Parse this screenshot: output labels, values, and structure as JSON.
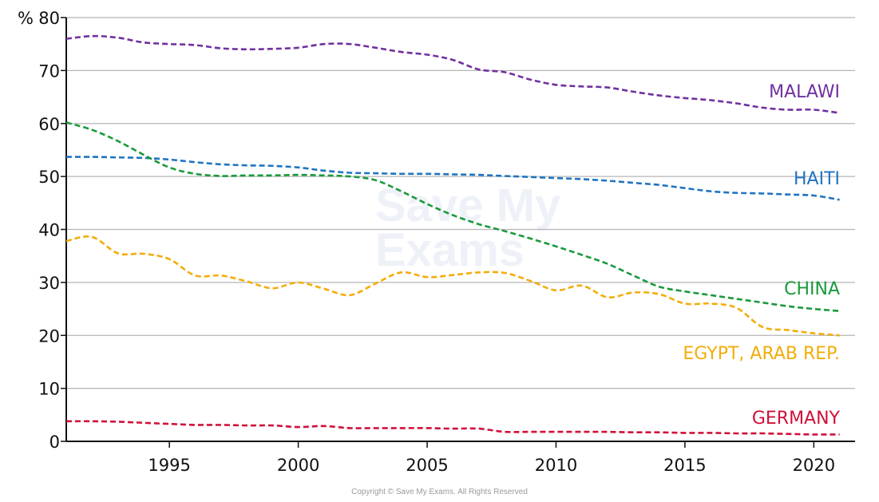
{
  "watermark": {
    "line1": "Save My",
    "line2": "Exams"
  },
  "copyright": "Copyright © Save My Exams. All Rights Reserved",
  "chart_data": {
    "type": "line",
    "title": "",
    "xlabel": "",
    "ylabel": "%",
    "xlim": [
      1991,
      2021.6
    ],
    "ylim": [
      0,
      80
    ],
    "xticks": [
      1995,
      2000,
      2005,
      2010,
      2015,
      2020
    ],
    "yticks": [
      0,
      10,
      20,
      30,
      40,
      50,
      60,
      70,
      80
    ],
    "grid": {
      "horizontal": true,
      "vertical": false
    },
    "line_style": "dashed",
    "legend": "labels at right end of lines",
    "series": [
      {
        "name": "MALAWI",
        "color": "#7030a0",
        "x": [
          1991,
          1992,
          1993,
          1994,
          1995,
          1996,
          1997,
          1998,
          1999,
          2000,
          2001,
          2002,
          2003,
          2004,
          2005,
          2006,
          2007,
          2008,
          2009,
          2010,
          2011,
          2012,
          2013,
          2014,
          2015,
          2016,
          2017,
          2018,
          2019,
          2020,
          2021
        ],
        "y": [
          76,
          76.5,
          76.2,
          75.3,
          75,
          74.8,
          74.2,
          74,
          74.1,
          74.3,
          75,
          75,
          74.3,
          73.5,
          73,
          72,
          70.2,
          69.7,
          68.3,
          67.3,
          67,
          66.8,
          66,
          65.3,
          64.8,
          64.4,
          63.8,
          63,
          62.6,
          62.6,
          62
        ]
      },
      {
        "name": "HAITI",
        "color": "#1f74c2",
        "x": [
          1991,
          1992,
          1993,
          1994,
          1995,
          1996,
          1997,
          1998,
          1999,
          2000,
          2001,
          2002,
          2003,
          2004,
          2005,
          2006,
          2007,
          2008,
          2009,
          2010,
          2011,
          2012,
          2013,
          2014,
          2015,
          2016,
          2017,
          2018,
          2019,
          2020,
          2021
        ],
        "y": [
          53.7,
          53.7,
          53.6,
          53.5,
          53.2,
          52.7,
          52.3,
          52.1,
          52,
          51.7,
          51.1,
          50.7,
          50.6,
          50.5,
          50.5,
          50.4,
          50.3,
          50.1,
          49.9,
          49.7,
          49.5,
          49.2,
          48.8,
          48.4,
          47.8,
          47.2,
          46.9,
          46.8,
          46.6,
          46.4,
          45.6
        ]
      },
      {
        "name": "CHINA",
        "color": "#1a9a3c",
        "x": [
          1991,
          1992,
          1993,
          1994,
          1995,
          1996,
          1997,
          1998,
          1999,
          2000,
          2001,
          2002,
          2003,
          2004,
          2005,
          2006,
          2007,
          2008,
          2009,
          2010,
          2011,
          2012,
          2013,
          2014,
          2015,
          2016,
          2017,
          2018,
          2019,
          2020,
          2021
        ],
        "y": [
          60.2,
          58.8,
          56.7,
          54.1,
          51.7,
          50.5,
          50.1,
          50.2,
          50.2,
          50.3,
          50.2,
          50,
          49.3,
          47.2,
          44.8,
          42.7,
          41,
          39.7,
          38.3,
          36.8,
          35.2,
          33.5,
          31.3,
          29.2,
          28.3,
          27.6,
          26.9,
          26.2,
          25.5,
          25,
          24.6
        ]
      },
      {
        "name": "EGYPT, ARAB REP.",
        "color": "#f2ad0a",
        "x": [
          1991,
          1992,
          1993,
          1994,
          1995,
          1996,
          1997,
          1998,
          1999,
          2000,
          2001,
          2002,
          2003,
          2004,
          2005,
          2006,
          2007,
          2008,
          2009,
          2010,
          2011,
          2012,
          2013,
          2014,
          2015,
          2016,
          2017,
          2018,
          2019,
          2020,
          2021
        ],
        "y": [
          37.8,
          38.6,
          35.5,
          35.4,
          34.4,
          31.3,
          31.3,
          30.2,
          28.9,
          30,
          28.8,
          27.6,
          29.8,
          31.9,
          31,
          31.4,
          31.9,
          31.8,
          30.3,
          28.5,
          29.4,
          27.2,
          28.1,
          27.8,
          26,
          26,
          25.2,
          21.6,
          21,
          20.4,
          20
        ]
      },
      {
        "name": "GERMANY",
        "color": "#d0103a",
        "x": [
          1991,
          1992,
          1993,
          1994,
          1995,
          1996,
          1997,
          1998,
          1999,
          2000,
          2001,
          2002,
          2003,
          2004,
          2005,
          2006,
          2007,
          2008,
          2009,
          2010,
          2011,
          2012,
          2013,
          2014,
          2015,
          2016,
          2017,
          2018,
          2019,
          2020,
          2021
        ],
        "y": [
          3.8,
          3.8,
          3.7,
          3.5,
          3.3,
          3.1,
          3.1,
          3,
          3,
          2.7,
          2.9,
          2.5,
          2.5,
          2.5,
          2.5,
          2.4,
          2.4,
          1.8,
          1.8,
          1.8,
          1.8,
          1.8,
          1.7,
          1.7,
          1.6,
          1.6,
          1.5,
          1.5,
          1.4,
          1.3,
          1.3
        ]
      }
    ]
  }
}
